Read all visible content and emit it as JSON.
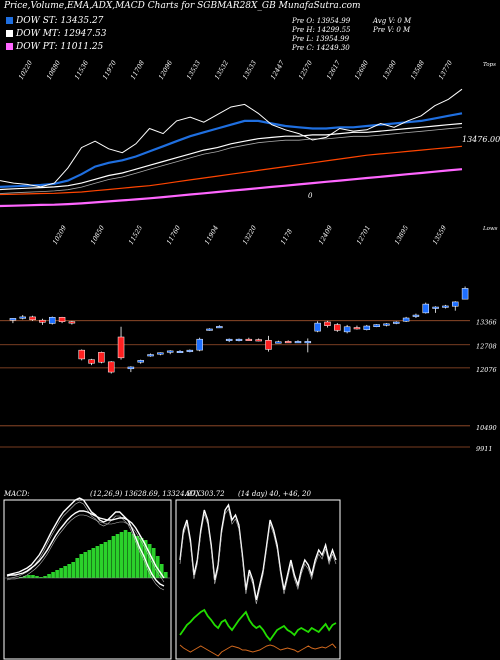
{
  "header": {
    "title": "Price,Volume,EMA,ADX,MACD Charts for SGBMAR28X_GB MunafaSutra.com"
  },
  "legend": [
    {
      "label": "DOW ST: 13435.27",
      "color": "#1f6fe0"
    },
    {
      "label": "DOW MT: 12947.53",
      "color": "#ffffff"
    },
    {
      "label": "DOW PT: 11011.25",
      "color": "#ff66ff"
    }
  ],
  "info": {
    "pre_o": "Pre   O: 13954.99",
    "pre_h": "Pre   H: 14299.55",
    "pre_l": "Pre   L: 13954.99",
    "pre_c": "Pre   C: 14249.30",
    "avg_v": "Avg V: 0  M",
    "pre_v": "Pre   V: 0  M"
  },
  "chart_data": [
    {
      "type": "line",
      "name": "ema-panel",
      "top_labels": [
        "10220",
        "10880",
        "11536",
        "11970",
        "11708",
        "12096",
        "13533",
        "13532",
        "13533",
        "12447",
        "12570",
        "12617",
        "12680",
        "13290",
        "13588",
        "13770"
      ],
      "bottom_labels": [
        "10209",
        "10850",
        "11525",
        "11760",
        "11904",
        "13220",
        "1178",
        "12409",
        "12701",
        "13895",
        "13559"
      ],
      "corner_top": "Tops",
      "corner_bottom": "Lows",
      "price_label": "13476.00",
      "zero_label": "0",
      "colors": {
        "price": "#ffffff",
        "ema_short": "#1f6fe0",
        "ema_mid": "#ffffff",
        "ema_long": "#ff4500",
        "ema_pt": "#ff66ff"
      },
      "series": [
        {
          "role": "price",
          "values": [
            9.5,
            9.3,
            9.2,
            9.0,
            9.3,
            10.5,
            12.1,
            12.6,
            12.0,
            11.7,
            12.4,
            13.6,
            13.2,
            14.2,
            14.5,
            14.1,
            14.7,
            15.3,
            15.5,
            14.8,
            13.9,
            13.5,
            13.2,
            12.7,
            12.9,
            13.6,
            13.4,
            13.5,
            14.0,
            13.7,
            14.2,
            14.6,
            15.4,
            15.9,
            16.7
          ]
        },
        {
          "role": "ema_short",
          "values": [
            9.0,
            9.05,
            9.1,
            9.15,
            9.25,
            9.5,
            10.0,
            10.6,
            10.9,
            11.1,
            11.4,
            11.8,
            12.2,
            12.6,
            13.0,
            13.3,
            13.6,
            13.9,
            14.2,
            14.2,
            14.0,
            13.8,
            13.7,
            13.6,
            13.6,
            13.7,
            13.7,
            13.8,
            13.9,
            14.0,
            14.1,
            14.2,
            14.4,
            14.6,
            14.8
          ]
        },
        {
          "role": "ema_mid",
          "values": [
            8.8,
            8.85,
            8.9,
            8.95,
            9.0,
            9.1,
            9.3,
            9.6,
            9.9,
            10.1,
            10.4,
            10.7,
            11.0,
            11.3,
            11.6,
            11.9,
            12.1,
            12.4,
            12.6,
            12.8,
            12.9,
            13.0,
            13.0,
            13.1,
            13.1,
            13.2,
            13.3,
            13.3,
            13.4,
            13.5,
            13.6,
            13.7,
            13.8,
            13.9,
            14.0
          ]
        },
        {
          "role": "ema_long",
          "values": [
            8.4,
            8.42,
            8.45,
            8.48,
            8.5,
            8.55,
            8.6,
            8.7,
            8.8,
            8.9,
            9.0,
            9.1,
            9.25,
            9.4,
            9.55,
            9.7,
            9.85,
            10.0,
            10.15,
            10.3,
            10.45,
            10.6,
            10.75,
            10.9,
            11.05,
            11.2,
            11.35,
            11.5,
            11.6,
            11.7,
            11.8,
            11.9,
            12.0,
            12.1,
            12.2
          ]
        },
        {
          "role": "ema_pt",
          "values": [
            7.5,
            7.52,
            7.55,
            7.58,
            7.6,
            7.65,
            7.7,
            7.78,
            7.86,
            7.94,
            8.02,
            8.1,
            8.2,
            8.3,
            8.4,
            8.5,
            8.6,
            8.7,
            8.8,
            8.9,
            9.0,
            9.1,
            9.2,
            9.3,
            9.4,
            9.5,
            9.6,
            9.7,
            9.8,
            9.9,
            10.0,
            10.1,
            10.2,
            10.3,
            10.4
          ]
        }
      ],
      "ylim": [
        6,
        19
      ]
    },
    {
      "type": "candlestick",
      "name": "price-panel",
      "ylim": [
        9500,
        15300
      ],
      "ytick_labels": [
        "13366",
        "12708",
        "12076",
        "10490",
        "9911"
      ],
      "ytick_values": [
        13366,
        12708,
        12076,
        10490,
        9911
      ],
      "candles": [
        {
          "o": 13380,
          "h": 13440,
          "l": 13300,
          "c": 13430
        },
        {
          "o": 13430,
          "h": 13520,
          "l": 13400,
          "c": 13470
        },
        {
          "o": 13470,
          "h": 13500,
          "l": 13360,
          "c": 13390
        },
        {
          "o": 13380,
          "h": 13420,
          "l": 13250,
          "c": 13320
        },
        {
          "o": 13290,
          "h": 13480,
          "l": 13260,
          "c": 13460
        },
        {
          "o": 13460,
          "h": 13470,
          "l": 13300,
          "c": 13340
        },
        {
          "o": 13340,
          "h": 13360,
          "l": 13260,
          "c": 13330
        },
        {
          "o": 12560,
          "h": 12580,
          "l": 12280,
          "c": 12320
        },
        {
          "o": 12300,
          "h": 12320,
          "l": 12150,
          "c": 12200
        },
        {
          "o": 12500,
          "h": 12520,
          "l": 12200,
          "c": 12230
        },
        {
          "o": 12240,
          "h": 12260,
          "l": 11920,
          "c": 11960
        },
        {
          "o": 12920,
          "h": 13200,
          "l": 12300,
          "c": 12350
        },
        {
          "o": 12050,
          "h": 12120,
          "l": 11960,
          "c": 12100
        },
        {
          "o": 12230,
          "h": 12300,
          "l": 12190,
          "c": 12280
        },
        {
          "o": 12420,
          "h": 12470,
          "l": 12380,
          "c": 12440
        },
        {
          "o": 12450,
          "h": 12500,
          "l": 12420,
          "c": 12490
        },
        {
          "o": 12500,
          "h": 12560,
          "l": 12450,
          "c": 12540
        },
        {
          "o": 12520,
          "h": 12560,
          "l": 12490,
          "c": 12530
        },
        {
          "o": 12530,
          "h": 12580,
          "l": 12500,
          "c": 12560
        },
        {
          "o": 12560,
          "h": 12900,
          "l": 12530,
          "c": 12860
        },
        {
          "o": 13130,
          "h": 13160,
          "l": 13090,
          "c": 13140
        },
        {
          "o": 13200,
          "h": 13240,
          "l": 13170,
          "c": 13210
        },
        {
          "o": 12840,
          "h": 12880,
          "l": 12780,
          "c": 12860
        },
        {
          "o": 12840,
          "h": 12880,
          "l": 12800,
          "c": 12860
        },
        {
          "o": 12860,
          "h": 12900,
          "l": 12820,
          "c": 12850
        },
        {
          "o": 12850,
          "h": 12880,
          "l": 12800,
          "c": 12830
        },
        {
          "o": 12830,
          "h": 12950,
          "l": 12520,
          "c": 12580
        },
        {
          "o": 12780,
          "h": 12820,
          "l": 12760,
          "c": 12790
        },
        {
          "o": 12800,
          "h": 12830,
          "l": 12770,
          "c": 12790
        },
        {
          "o": 12790,
          "h": 12830,
          "l": 12760,
          "c": 12800
        },
        {
          "o": 12790,
          "h": 12880,
          "l": 12500,
          "c": 12800
        },
        {
          "o": 13080,
          "h": 13350,
          "l": 13050,
          "c": 13300
        },
        {
          "o": 13330,
          "h": 13360,
          "l": 13180,
          "c": 13230
        },
        {
          "o": 13260,
          "h": 13300,
          "l": 13060,
          "c": 13100
        },
        {
          "o": 13060,
          "h": 13250,
          "l": 13020,
          "c": 13200
        },
        {
          "o": 13180,
          "h": 13230,
          "l": 13120,
          "c": 13170
        },
        {
          "o": 13120,
          "h": 13250,
          "l": 13100,
          "c": 13220
        },
        {
          "o": 13200,
          "h": 13270,
          "l": 13190,
          "c": 13260
        },
        {
          "o": 13250,
          "h": 13300,
          "l": 13210,
          "c": 13280
        },
        {
          "o": 13300,
          "h": 13350,
          "l": 13270,
          "c": 13330
        },
        {
          "o": 13350,
          "h": 13470,
          "l": 13330,
          "c": 13440
        },
        {
          "o": 13500,
          "h": 13560,
          "l": 13440,
          "c": 13520
        },
        {
          "o": 13580,
          "h": 13860,
          "l": 13560,
          "c": 13820
        },
        {
          "o": 13720,
          "h": 13760,
          "l": 13580,
          "c": 13740
        },
        {
          "o": 13740,
          "h": 13800,
          "l": 13700,
          "c": 13770
        },
        {
          "o": 13760,
          "h": 13900,
          "l": 13640,
          "c": 13880
        },
        {
          "o": 13955,
          "h": 14300,
          "l": 13955,
          "c": 14249
        }
      ]
    },
    {
      "type": "line",
      "name": "macd-panel",
      "title": "MACD:",
      "subtitle": "(12,26,9) 13628.69, 13324.97, 303.72",
      "colors": {
        "hist": "#2bd12b",
        "macd": "#ffffff",
        "signal": "#ffffff"
      }
    },
    {
      "type": "line",
      "name": "adx-panel",
      "title": "ADX",
      "subtitle": "(14 day) 40, +46, 20",
      "colors": {
        "adx": "#ffffff",
        "plus_di": "#22dd00",
        "minus_di": "#d2691e"
      }
    }
  ]
}
